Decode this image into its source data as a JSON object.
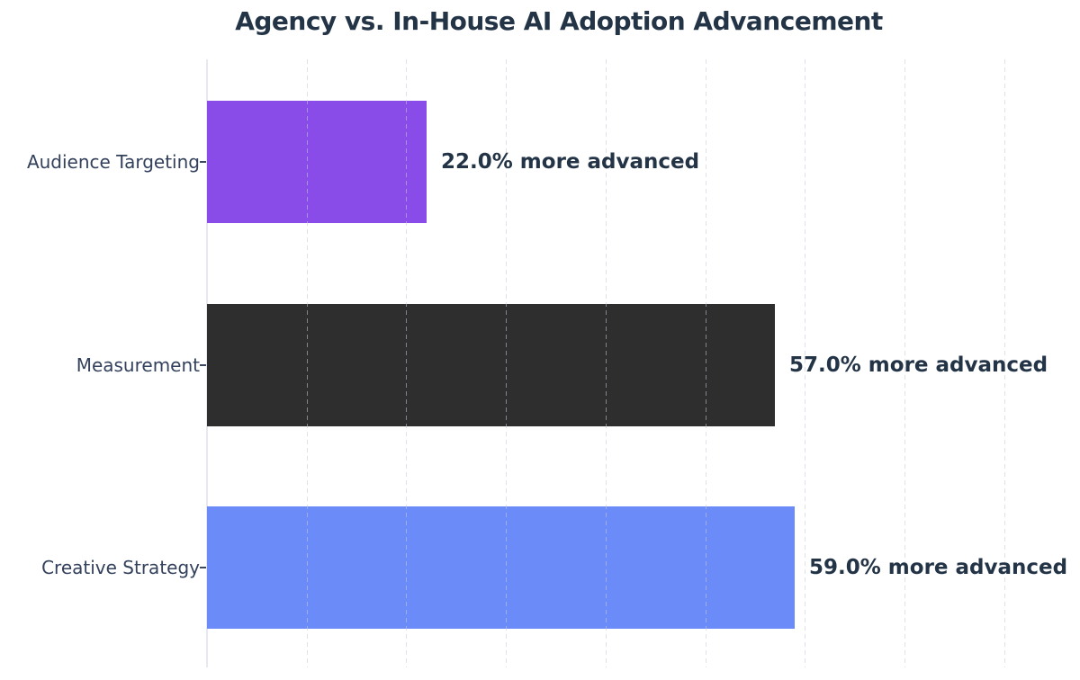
{
  "page_title": "Agency vs. In-House AI Adoption Advancement",
  "chart_data": {
    "type": "bar",
    "orientation": "horizontal",
    "title": "Agency vs. In-House AI Adoption Advancement",
    "categories": [
      "Audience Targeting",
      "Measurement",
      "Creative Strategy"
    ],
    "values": [
      22.0,
      57.0,
      59.0
    ],
    "bar_labels": [
      "22.0% more advanced",
      "57.0% more advanced",
      "59.0% more advanced"
    ],
    "bar_colors": [
      "#8a4ce9",
      "#2e2e2e",
      "#6b8cf8"
    ],
    "xlabel": "",
    "ylabel": "",
    "xlim": [
      0,
      85
    ],
    "grid": {
      "axis": "x",
      "step": 10,
      "style": "dashed",
      "layer": "above-bars"
    },
    "legend_position": "none",
    "x_tick_labels_visible": false
  },
  "colors": {
    "background": "#ffffff",
    "title_text": "#243447",
    "category_label_text": "#33415c",
    "annotation_text": "#243447",
    "gridline": "#c7cadb",
    "axis_line": "#e8e9f0",
    "bar_audience_targeting": "#8a4ce9",
    "bar_measurement": "#2e2e2e",
    "bar_creative_strategy": "#6b8cf8"
  }
}
